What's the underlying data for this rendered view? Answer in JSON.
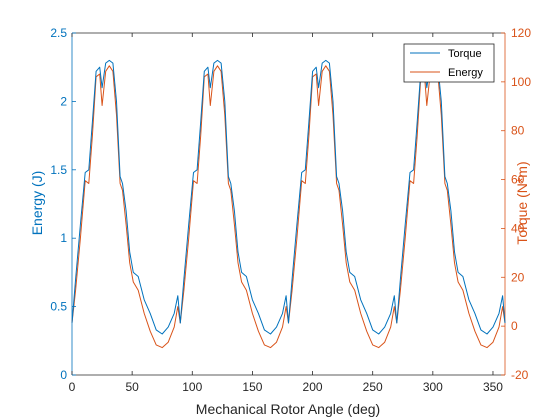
{
  "chart_data": {
    "type": "line",
    "xlabel": "Mechanical Rotor Angle (deg)",
    "ylabel_left": "Energy (J)",
    "ylabel_right": "Torque (N*m)",
    "xlim": [
      0,
      360
    ],
    "ylim_left": [
      0,
      2.5
    ],
    "ylim_right": [
      -20,
      120
    ],
    "x_ticks": [
      0,
      50,
      100,
      150,
      200,
      250,
      300,
      350
    ],
    "y_left_ticks": [
      0,
      0.5,
      1,
      1.5,
      2,
      2.5
    ],
    "y_right_ticks": [
      -20,
      0,
      20,
      40,
      60,
      80,
      100,
      120
    ],
    "grid": false,
    "legend_position": "top-right",
    "colors": {
      "series1": "#0072BD",
      "series2": "#D95319",
      "axis_left": "#0072BD",
      "axis_right": "#D95319"
    },
    "period_deg": 90,
    "series": [
      {
        "name": "Torque",
        "axis": "left",
        "x": [
          0,
          3,
          7,
          11,
          14,
          17,
          20,
          23,
          25,
          28,
          31,
          34,
          37,
          40,
          42,
          45,
          48,
          51,
          55,
          60,
          65,
          70,
          75,
          80,
          85,
          88,
          90
        ],
        "y": [
          0.38,
          0.7,
          1.1,
          1.48,
          1.5,
          1.85,
          2.22,
          2.25,
          2.1,
          2.28,
          2.3,
          2.28,
          2.0,
          1.45,
          1.4,
          1.2,
          0.9,
          0.75,
          0.72,
          0.55,
          0.45,
          0.33,
          0.3,
          0.35,
          0.45,
          0.58,
          0.38
        ]
      },
      {
        "name": "Energy",
        "axis": "left",
        "x": [
          0,
          3,
          7,
          11,
          14,
          17,
          20,
          23,
          25,
          28,
          31,
          34,
          37,
          40,
          42,
          45,
          48,
          51,
          55,
          60,
          65,
          70,
          75,
          80,
          85,
          88,
          90
        ],
        "y": [
          0.38,
          0.62,
          1.0,
          1.42,
          1.4,
          1.75,
          2.18,
          2.2,
          1.97,
          2.22,
          2.26,
          2.22,
          1.9,
          1.4,
          1.35,
          1.1,
          0.82,
          0.68,
          0.62,
          0.45,
          0.32,
          0.22,
          0.2,
          0.24,
          0.35,
          0.5,
          0.38
        ]
      }
    ]
  }
}
